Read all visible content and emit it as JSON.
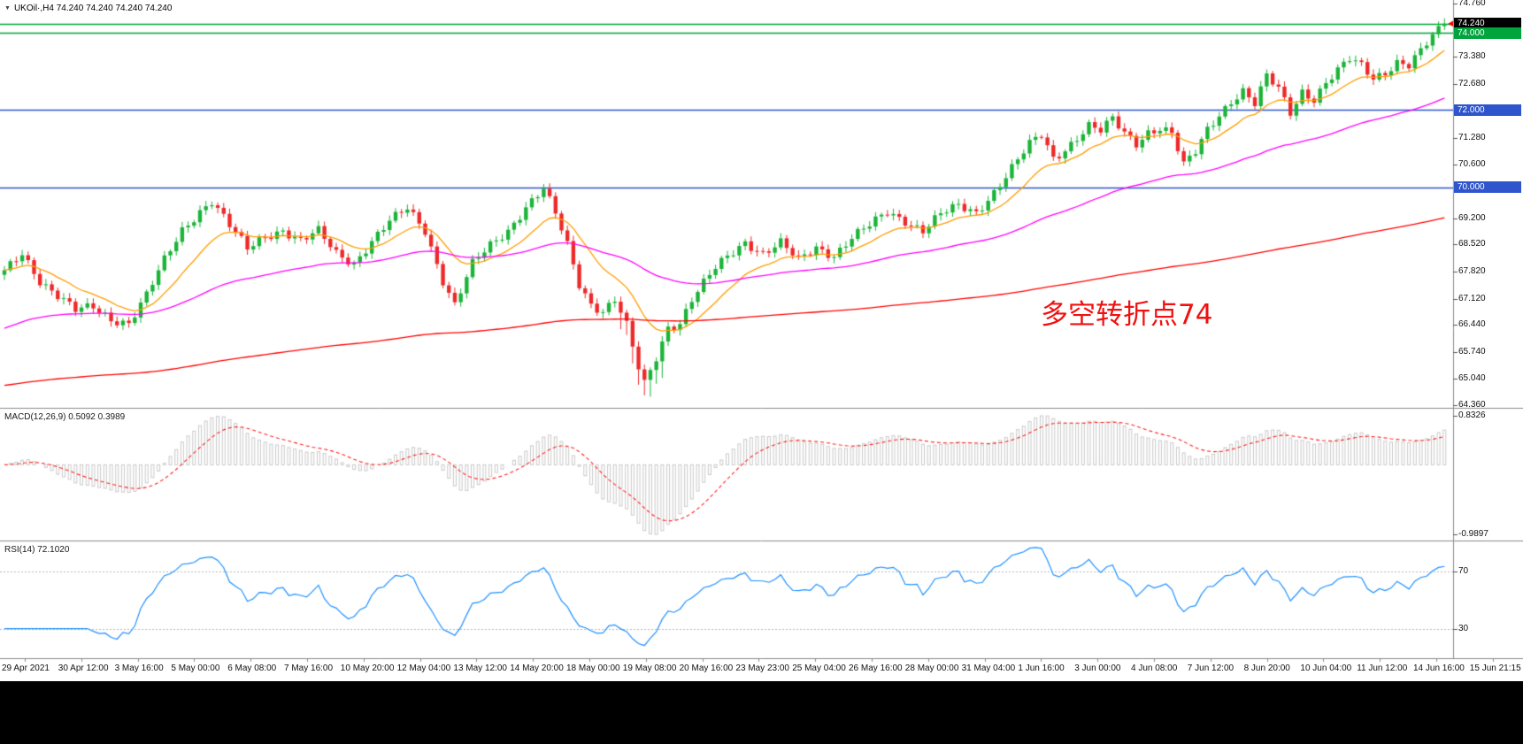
{
  "header": {
    "collapse_icon": "▼",
    "symbol_info": "UKOil·,H4 74.240 74.240 74.240 74.240"
  },
  "annotation": {
    "text": "多空转折点74",
    "color": "#f01010"
  },
  "price_axis": {
    "labels": [
      "74.760",
      "73.380",
      "72.680",
      "71.280",
      "70.600",
      "69.200",
      "68.520",
      "67.820",
      "67.120",
      "66.440",
      "65.740",
      "65.040",
      "64.360"
    ],
    "tags": [
      {
        "label": "74.240",
        "price": 74.24,
        "bg": "#000000"
      },
      {
        "label": "74.000",
        "price": 74.0,
        "bg": "#00a43c"
      },
      {
        "label": "72.000",
        "price": 72.0,
        "bg": "#2f55cc"
      },
      {
        "label": "70.000",
        "price": 70.0,
        "bg": "#2f55cc"
      }
    ]
  },
  "macd": {
    "label": "MACD(12,26,9) 0.5092 0.3989",
    "axis_max": "0.8326",
    "axis_min": "-0.9897"
  },
  "rsi": {
    "label": "RSI(14) 72.1020",
    "axis_upper": "70",
    "axis_lower": "30"
  },
  "time_axis": [
    "29 Apr 2021",
    "30 Apr 12:00",
    "3 May 16:00",
    "5 May 00:00",
    "6 May 08:00",
    "7 May 16:00",
    "10 May 20:00",
    "12 May 04:00",
    "13 May 12:00",
    "14 May 20:00",
    "18 May 00:00",
    "19 May 08:00",
    "20 May 16:00",
    "23 May 23:00",
    "25 May 04:00",
    "26 May 16:00",
    "28 May 00:00",
    "31 May 04:00",
    "1 Jun 16:00",
    "3 Jun 00:00",
    "4 Jun 08:00",
    "7 Jun 12:00",
    "8 Jun 20:00",
    "10 Jun 04:00",
    "11 Jun 12:00",
    "14 Jun 16:00",
    "15 Jun 21:15"
  ],
  "chart_data": {
    "type": "candlestick",
    "symbol": "UKOil",
    "timeframe": "H4",
    "quote": {
      "open": 74.24,
      "high": 74.24,
      "low": 74.24,
      "close": 74.24
    },
    "visible_range": {
      "price_max": 74.76,
      "price_min": 64.36
    },
    "horizontal_lines": [
      {
        "price": 74.24,
        "color": "#00a43c"
      },
      {
        "price": 74.0,
        "color": "#00a43c"
      },
      {
        "price": 72.0,
        "color": "#2f55cc"
      },
      {
        "price": 70.0,
        "color": "#2f55cc"
      }
    ],
    "candle_count": 244,
    "close_path_anchors": [
      [
        0,
        67.8
      ],
      [
        3,
        68.3
      ],
      [
        6,
        67.6
      ],
      [
        9,
        67.2
      ],
      [
        12,
        66.8
      ],
      [
        15,
        66.9
      ],
      [
        18,
        66.6
      ],
      [
        21,
        66.5
      ],
      [
        24,
        67.2
      ],
      [
        27,
        68.1
      ],
      [
        30,
        68.9
      ],
      [
        33,
        69.4
      ],
      [
        35,
        69.65
      ],
      [
        38,
        69.0
      ],
      [
        41,
        68.4
      ],
      [
        44,
        68.75
      ],
      [
        47,
        68.9
      ],
      [
        50,
        68.6
      ],
      [
        53,
        68.85
      ],
      [
        56,
        68.3
      ],
      [
        59,
        68.05
      ],
      [
        62,
        68.6
      ],
      [
        65,
        69.1
      ],
      [
        68,
        69.45
      ],
      [
        71,
        68.9
      ],
      [
        74,
        67.6
      ],
      [
        76,
        66.95
      ],
      [
        79,
        68.0
      ],
      [
        82,
        68.5
      ],
      [
        85,
        68.9
      ],
      [
        88,
        69.5
      ],
      [
        91,
        69.95
      ],
      [
        93,
        69.3
      ],
      [
        95,
        68.5
      ],
      [
        97,
        67.5
      ],
      [
        99,
        67.0
      ],
      [
        101,
        66.8
      ],
      [
        103,
        67.1
      ],
      [
        105,
        66.4
      ],
      [
        107,
        65.3
      ],
      [
        108,
        64.9
      ],
      [
        110,
        65.6
      ],
      [
        112,
        66.4
      ],
      [
        114,
        66.5
      ],
      [
        116,
        67.1
      ],
      [
        118,
        67.5
      ],
      [
        120,
        67.9
      ],
      [
        122,
        68.2
      ],
      [
        125,
        68.6
      ],
      [
        128,
        68.3
      ],
      [
        131,
        68.55
      ],
      [
        134,
        68.1
      ],
      [
        137,
        68.45
      ],
      [
        140,
        68.25
      ],
      [
        143,
        68.7
      ],
      [
        146,
        69.0
      ],
      [
        149,
        69.35
      ],
      [
        152,
        69.15
      ],
      [
        155,
        68.9
      ],
      [
        158,
        69.3
      ],
      [
        161,
        69.5
      ],
      [
        164,
        69.35
      ],
      [
        167,
        69.9
      ],
      [
        170,
        70.5
      ],
      [
        173,
        71.1
      ],
      [
        175,
        71.35
      ],
      [
        177,
        70.75
      ],
      [
        179,
        71.0
      ],
      [
        181,
        71.3
      ],
      [
        183,
        71.6
      ],
      [
        185,
        71.45
      ],
      [
        187,
        71.75
      ],
      [
        189,
        71.4
      ],
      [
        191,
        71.15
      ],
      [
        193,
        71.45
      ],
      [
        195,
        71.55
      ],
      [
        197,
        71.4
      ],
      [
        199,
        70.55
      ],
      [
        201,
        70.9
      ],
      [
        203,
        71.5
      ],
      [
        205,
        71.9
      ],
      [
        207,
        72.25
      ],
      [
        209,
        72.5
      ],
      [
        211,
        72.15
      ],
      [
        213,
        72.85
      ],
      [
        215,
        72.55
      ],
      [
        217,
        71.95
      ],
      [
        219,
        72.5
      ],
      [
        221,
        72.3
      ],
      [
        223,
        72.7
      ],
      [
        225,
        73.0
      ],
      [
        227,
        73.3
      ],
      [
        229,
        73.15
      ],
      [
        231,
        72.85
      ],
      [
        233,
        73.0
      ],
      [
        235,
        73.25
      ],
      [
        237,
        73.15
      ],
      [
        239,
        73.5
      ],
      [
        241,
        73.9
      ],
      [
        243,
        74.24
      ]
    ],
    "moving_averages": [
      {
        "name": "fast-ma",
        "color": "#ff9d00",
        "alpha": 0.14
      },
      {
        "name": "mid-ma",
        "color": "#ff00ff",
        "alpha": 0.032,
        "seed": 66.3
      },
      {
        "name": "slow-ma",
        "color": "#ff0000",
        "alpha": 0.0068,
        "seed": 64.85
      }
    ],
    "indicators": [
      {
        "name": "MACD",
        "params": [
          12,
          26,
          9
        ],
        "current": [
          0.5092,
          0.3989
        ],
        "axis_range": [
          0.8326,
          -0.9897
        ],
        "histogram_color": "#c9c9c9",
        "signal_color": "#ff2020"
      },
      {
        "name": "RSI",
        "params": [
          14
        ],
        "current": 72.102,
        "levels": [
          70,
          30
        ],
        "line_color": "#1e90ff"
      }
    ],
    "marker": {
      "type": "arrow-left",
      "price": 74.24,
      "color": "#ff0000"
    },
    "colors": {
      "bull": "#1cb439",
      "bear": "#ee2929",
      "background": "#ffffff",
      "grid_divider": "#8a8a8a"
    }
  }
}
